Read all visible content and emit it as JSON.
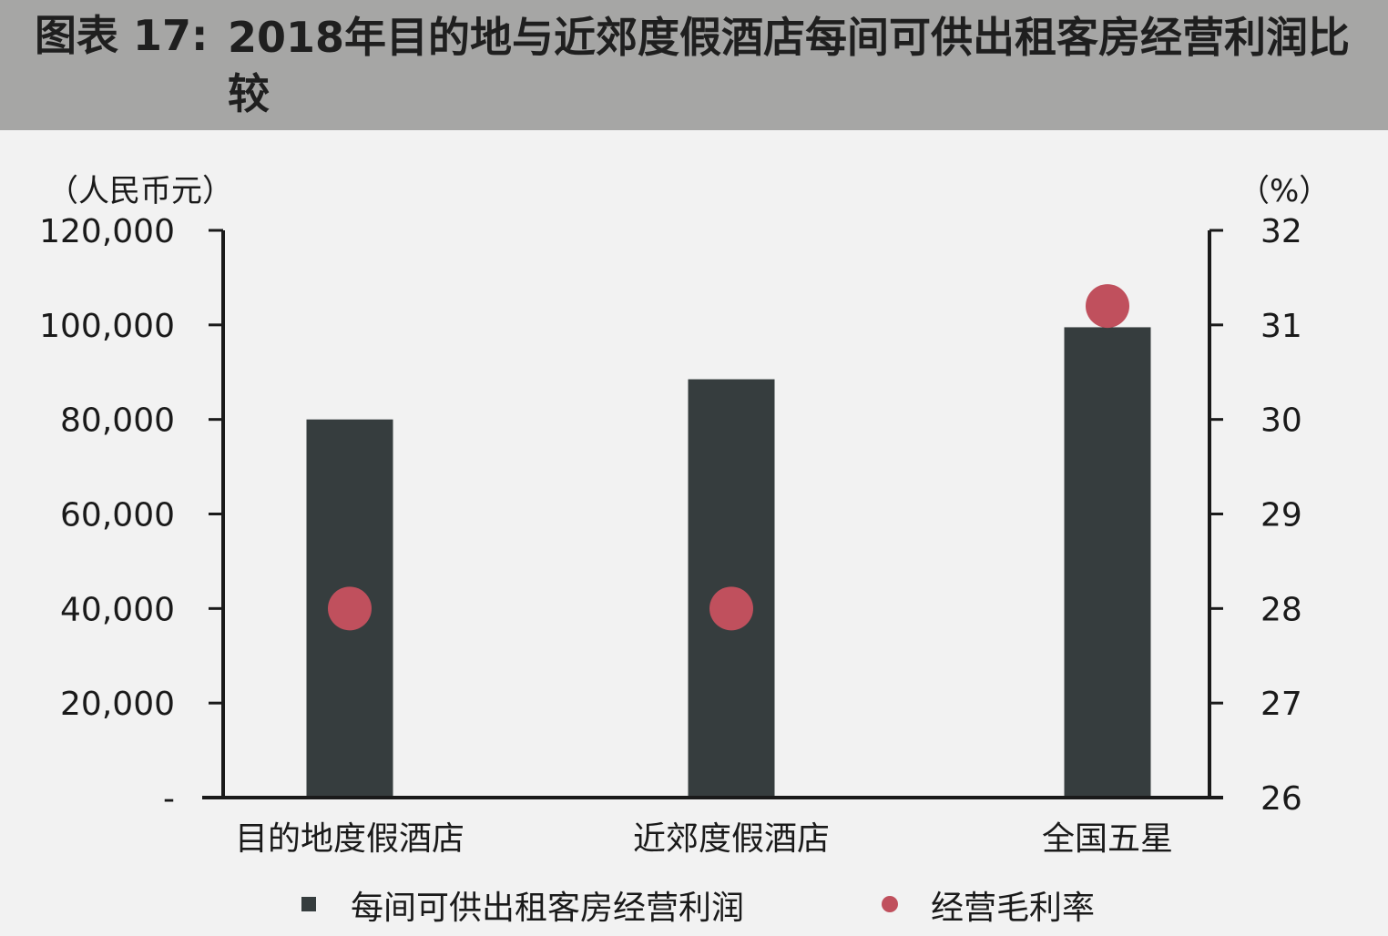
{
  "header": {
    "figure_label": "图表 17:",
    "title": "2018年目的地与近郊度假酒店每间可供出租客房经营利润比较"
  },
  "chart_data": {
    "type": "bar",
    "categories": [
      "目的地度假酒店",
      "近郊度假酒店",
      "全国五星"
    ],
    "series": [
      {
        "name": "每间可供出租客房经营利润",
        "type": "bar",
        "axis": "left",
        "values": [
          80000,
          88500,
          99500
        ],
        "color": "#363d3e"
      },
      {
        "name": "经营毛利率",
        "type": "scatter",
        "axis": "right",
        "values": [
          28.0,
          28.0,
          31.2
        ],
        "color": "#c0505d"
      }
    ],
    "left_axis": {
      "unit_label": "（人民币元）",
      "ylim": [
        0,
        120000
      ],
      "ticks": [
        0,
        20000,
        40000,
        60000,
        80000,
        100000,
        120000
      ],
      "tick_labels": [
        "-",
        "20,000",
        "40,000",
        "60,000",
        "80,000",
        "100,000",
        "120,000"
      ]
    },
    "right_axis": {
      "unit_label": "（%）",
      "ylim": [
        26,
        32
      ],
      "ticks": [
        26,
        27,
        28,
        29,
        30,
        31,
        32
      ],
      "tick_labels": [
        "26",
        "27",
        "28",
        "29",
        "30",
        "31",
        "32"
      ]
    },
    "grid": false,
    "legend_position": "bottom"
  }
}
